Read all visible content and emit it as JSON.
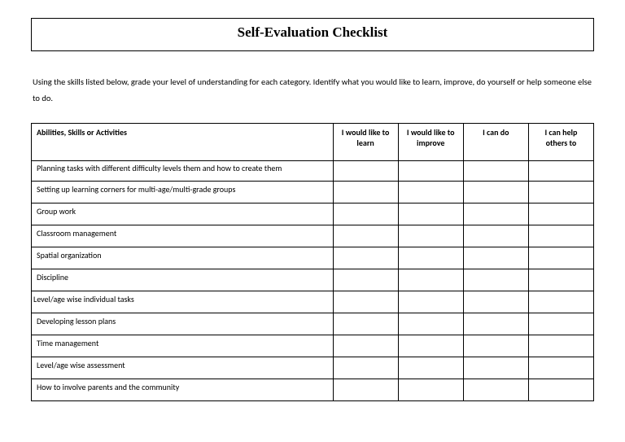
{
  "title": "Self-Evaluation Checklist",
  "instructions": "Using the skills listed below, grade your level of understanding for each category. Identify what you would like to learn, improve, do yourself or help someone else to do.",
  "columns": {
    "skill": "Abilities, Skills or Activities",
    "learn": "I would like to learn",
    "improve": "I would like to improve",
    "cando": "I can do",
    "help": "I can help others to"
  },
  "rows": [
    {
      "label": "Planning tasks with different difficulty levels them and how to create them",
      "tight": true
    },
    {
      "label": "Setting up learning corners for multi-age/multi-grade groups"
    },
    {
      "label": "Group work"
    },
    {
      "label": "Classroom management"
    },
    {
      "label": "Spatial organization"
    },
    {
      "label": "Discipline"
    },
    {
      "label": "Level/age wise individual tasks",
      "noindent": true
    },
    {
      "label": "Developing lesson plans"
    },
    {
      "label": "Time management"
    },
    {
      "label": "Level/age wise  assessment"
    },
    {
      "label": "How to involve parents and the community"
    }
  ]
}
